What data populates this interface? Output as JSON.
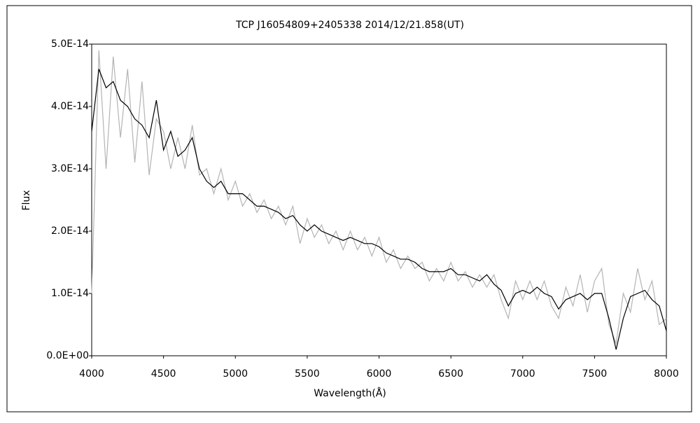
{
  "chart_data": {
    "type": "line",
    "title": "TCP J16054809+2405338     2014/12/21.858(UT)",
    "x_label": "Wavelength(Å)",
    "y_label": "Flux",
    "xlim": [
      4000,
      8000
    ],
    "xticks": [
      4000,
      4500,
      5000,
      5500,
      6000,
      6500,
      7000,
      7500,
      8000
    ],
    "ylim": [
      0,
      5e-14
    ],
    "yticks": [
      {
        "value": 0,
        "label": "0.0E+00"
      },
      {
        "value": 1e-14,
        "label": "1.0E-14"
      },
      {
        "value": 2e-14,
        "label": "2.0E-14"
      },
      {
        "value": 3e-14,
        "label": "3.0E-14"
      },
      {
        "value": 4e-14,
        "label": "4.0E-14"
      },
      {
        "value": 5e-14,
        "label": "5.0E-14"
      }
    ],
    "grid": false,
    "x": [
      4000,
      4050,
      4100,
      4150,
      4200,
      4250,
      4300,
      4350,
      4400,
      4450,
      4500,
      4550,
      4600,
      4650,
      4700,
      4750,
      4800,
      4850,
      4900,
      4950,
      5000,
      5050,
      5100,
      5150,
      5200,
      5250,
      5300,
      5350,
      5400,
      5450,
      5500,
      5550,
      5600,
      5650,
      5700,
      5750,
      5800,
      5850,
      5900,
      5950,
      6000,
      6050,
      6100,
      6150,
      6200,
      6250,
      6300,
      6350,
      6400,
      6450,
      6500,
      6550,
      6600,
      6650,
      6700,
      6750,
      6800,
      6850,
      6900,
      6950,
      7000,
      7050,
      7100,
      7150,
      7200,
      7250,
      7300,
      7350,
      7400,
      7450,
      7500,
      7550,
      7600,
      7650,
      7700,
      7750,
      7800,
      7850,
      7900,
      7950,
      8000
    ],
    "series": [
      {
        "color": "#b4b4b4",
        "values": [
          1e-14,
          4.9e-14,
          3e-14,
          4.8e-14,
          3.5e-14,
          4.6e-14,
          3.1e-14,
          4.4e-14,
          2.9e-14,
          3.8e-14,
          3.6e-14,
          3e-14,
          3.5e-14,
          3e-14,
          3.7e-14,
          2.9e-14,
          3e-14,
          2.6e-14,
          3e-14,
          2.5e-14,
          2.8e-14,
          2.4e-14,
          2.6e-14,
          2.3e-14,
          2.5e-14,
          2.2e-14,
          2.4e-14,
          2.1e-14,
          2.4e-14,
          1.8e-14,
          2.2e-14,
          1.9e-14,
          2.1e-14,
          1.8e-14,
          2e-14,
          1.7e-14,
          2e-14,
          1.7e-14,
          1.9e-14,
          1.6e-14,
          1.9e-14,
          1.5e-14,
          1.7e-14,
          1.4e-14,
          1.6e-14,
          1.4e-14,
          1.5e-14,
          1.2e-14,
          1.4e-14,
          1.2e-14,
          1.5e-14,
          1.2e-14,
          1.35e-14,
          1.1e-14,
          1.3e-14,
          1.1e-14,
          1.3e-14,
          9e-15,
          6e-15,
          1.2e-14,
          9e-15,
          1.2e-14,
          9e-15,
          1.2e-14,
          8e-15,
          6e-15,
          1.1e-14,
          8e-15,
          1.3e-14,
          7e-15,
          1.2e-14,
          1.4e-14,
          5e-15,
          2e-15,
          1e-14,
          7e-15,
          1.4e-14,
          9e-15,
          1.2e-14,
          5e-15,
          6e-15
        ]
      },
      {
        "color": "#000000",
        "values": [
          3.6e-14,
          4.6e-14,
          4.3e-14,
          4.4e-14,
          4.1e-14,
          4e-14,
          3.8e-14,
          3.7e-14,
          3.5e-14,
          4.1e-14,
          3.3e-14,
          3.6e-14,
          3.2e-14,
          3.3e-14,
          3.5e-14,
          3e-14,
          2.8e-14,
          2.7e-14,
          2.8e-14,
          2.6e-14,
          2.6e-14,
          2.6e-14,
          2.5e-14,
          2.4e-14,
          2.4e-14,
          2.35e-14,
          2.3e-14,
          2.2e-14,
          2.25e-14,
          2.1e-14,
          2e-14,
          2.1e-14,
          2e-14,
          1.95e-14,
          1.9e-14,
          1.85e-14,
          1.9e-14,
          1.85e-14,
          1.8e-14,
          1.8e-14,
          1.75e-14,
          1.65e-14,
          1.6e-14,
          1.55e-14,
          1.55e-14,
          1.5e-14,
          1.4e-14,
          1.35e-14,
          1.35e-14,
          1.35e-14,
          1.4e-14,
          1.3e-14,
          1.3e-14,
          1.25e-14,
          1.2e-14,
          1.3e-14,
          1.15e-14,
          1.05e-14,
          8e-15,
          1e-14,
          1.05e-14,
          1e-14,
          1.1e-14,
          1e-14,
          9.5e-15,
          7.5e-15,
          9e-15,
          9.5e-15,
          1e-14,
          9e-15,
          1e-14,
          1e-14,
          6e-15,
          1e-15,
          6e-15,
          9.5e-15,
          1e-14,
          1.05e-14,
          9e-15,
          8e-15,
          4e-15
        ]
      }
    ]
  }
}
